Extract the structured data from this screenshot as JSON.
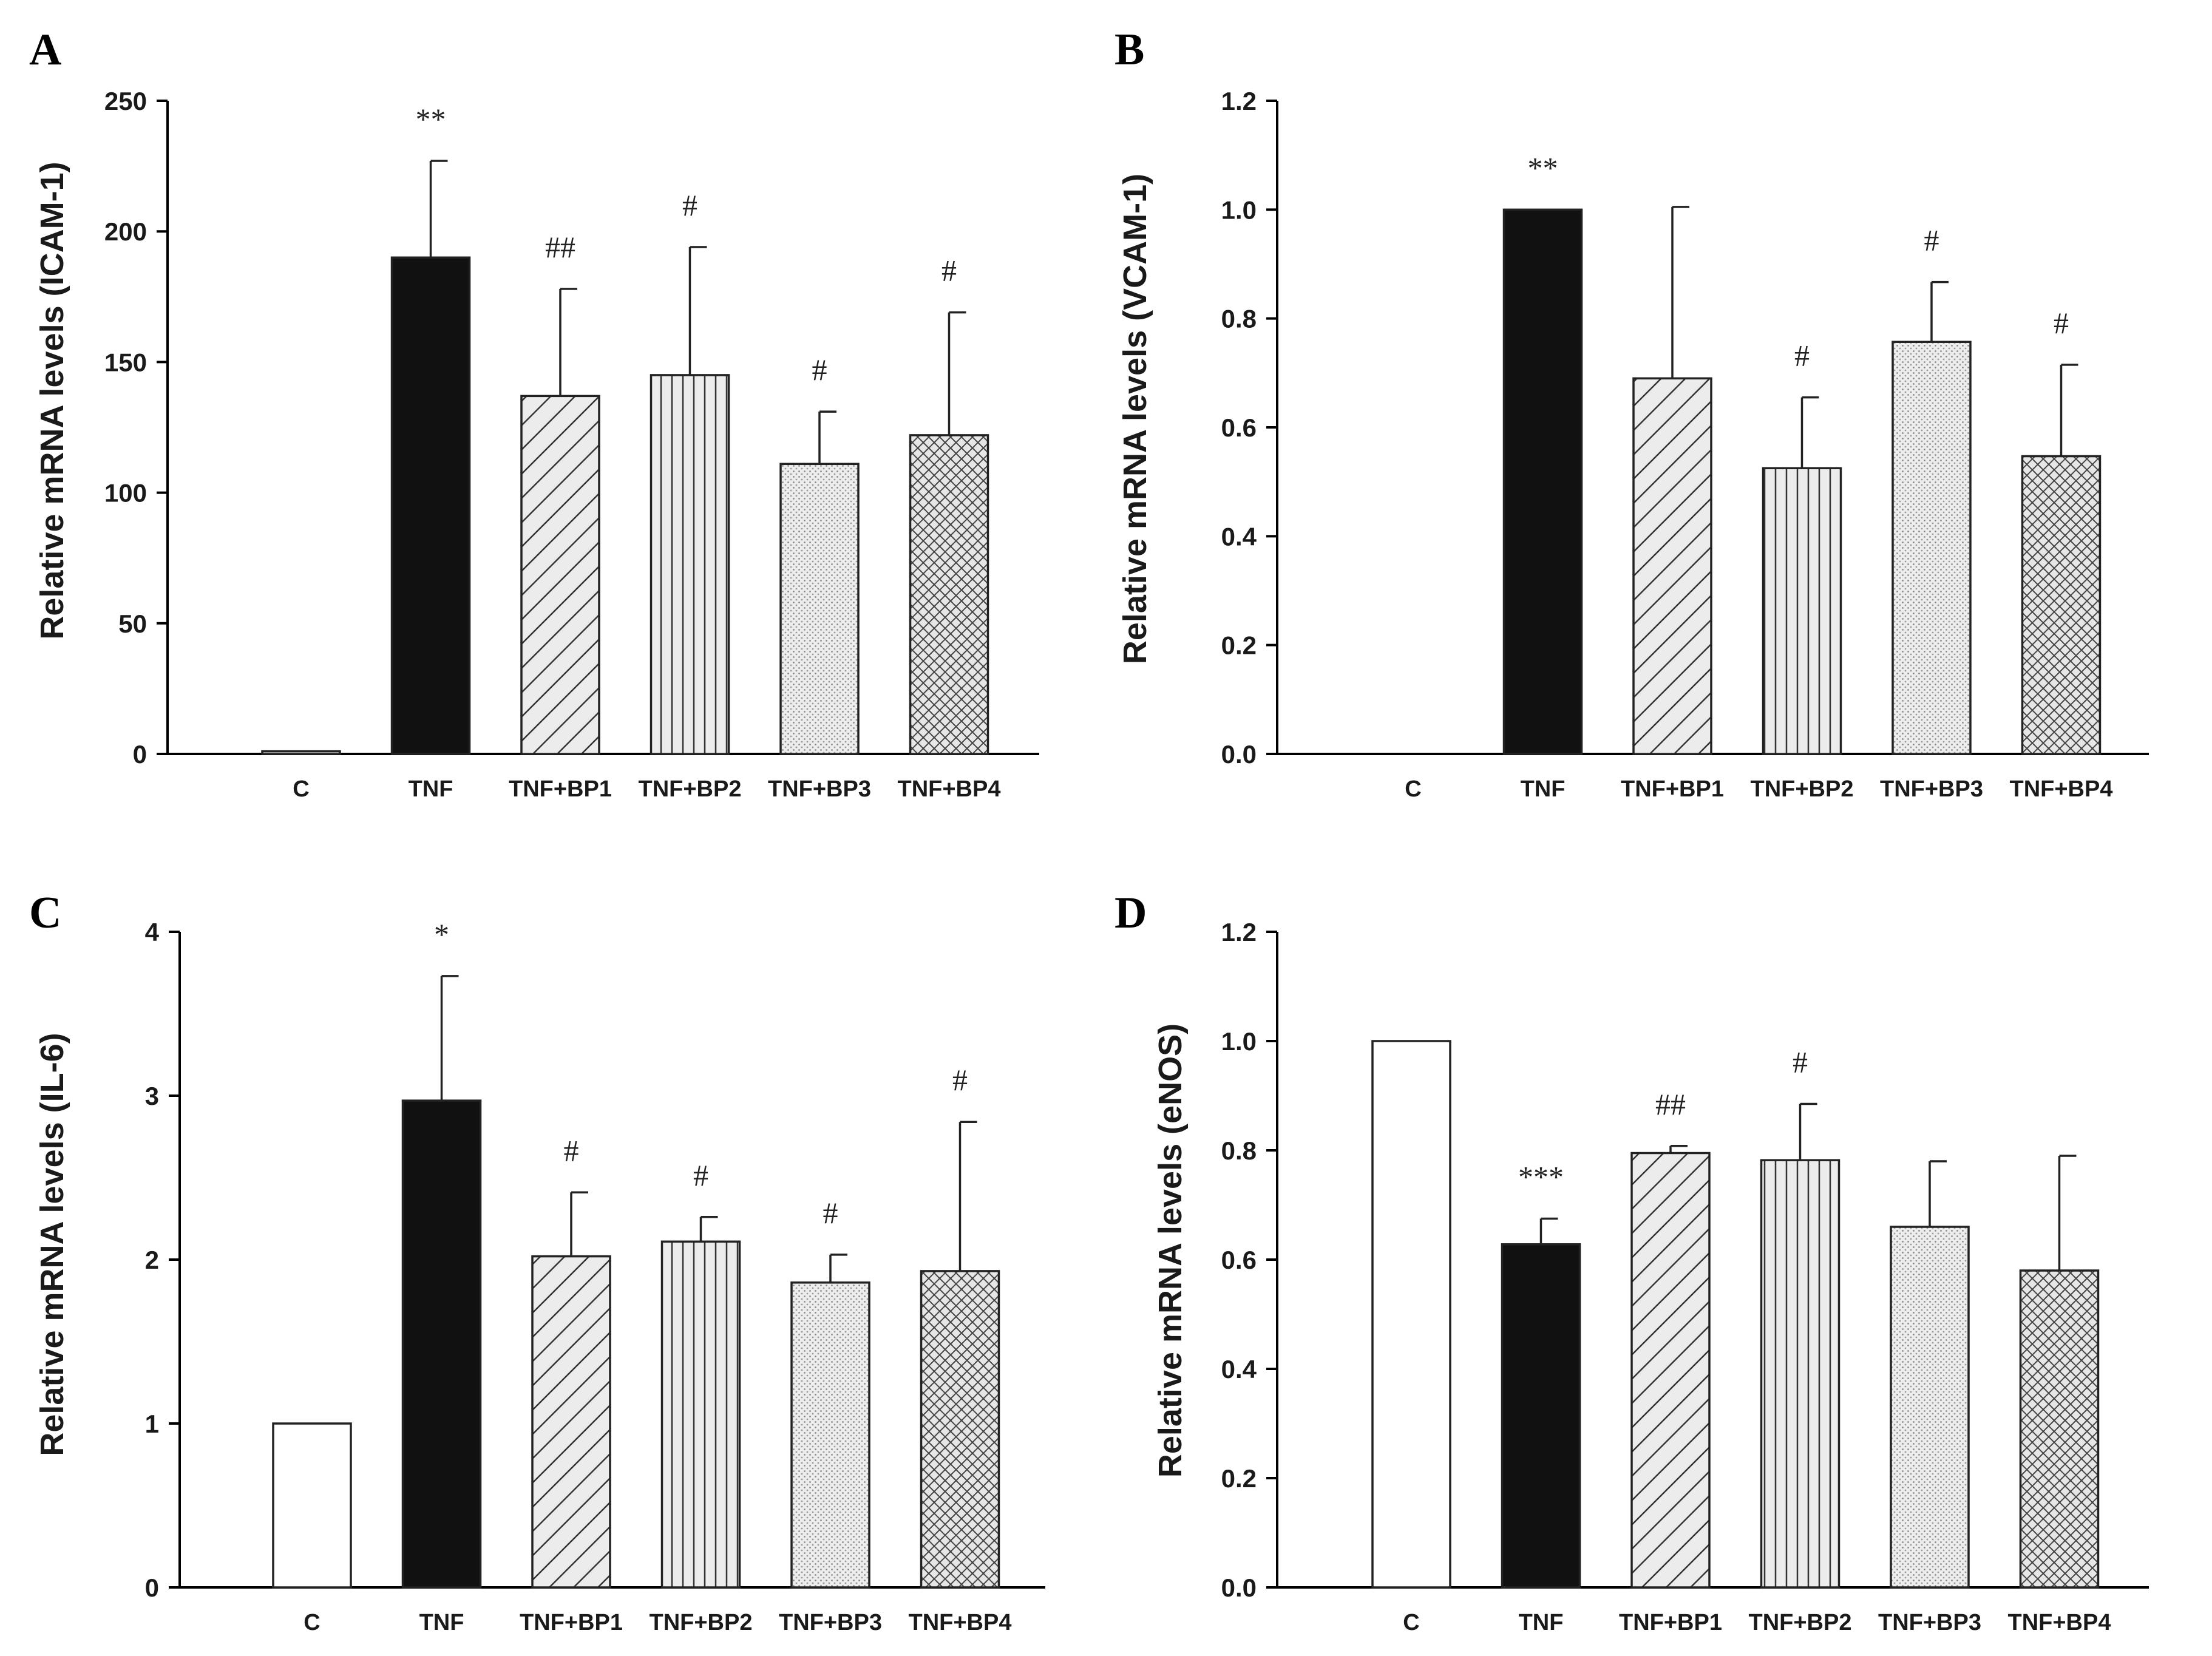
{
  "panels": [
    {
      "letter": "A",
      "chart_data": {
        "type": "bar",
        "categories": [
          "C",
          "TNF",
          "TNF+BP1",
          "TNF+BP2",
          "TNF+BP3",
          "TNF+BP4"
        ],
        "values": [
          1,
          190,
          137,
          145,
          111,
          122
        ],
        "errors": [
          0,
          37,
          41,
          49,
          20,
          47
        ],
        "significance": [
          "",
          "**",
          "##",
          "#",
          "#",
          "#"
        ],
        "ylabel": "Relative mRNA levels (ICAM-1)",
        "ylim": [
          0,
          250
        ],
        "yticks": [
          "0",
          "50",
          "100",
          "150",
          "200",
          "250"
        ],
        "patterns": [
          "white",
          "solid-black",
          "diagonal",
          "vertical",
          "dots",
          "crosshatch"
        ]
      }
    },
    {
      "letter": "B",
      "chart_data": {
        "type": "bar",
        "categories": [
          "C",
          "TNF",
          "TNF+BP1",
          "TNF+BP2",
          "TNF+BP3",
          "TNF+BP4"
        ],
        "values": [
          0,
          1.0,
          0.69,
          0.525,
          0.757,
          0.547
        ],
        "errors": [
          0,
          0,
          0.315,
          0.13,
          0.11,
          0.168
        ],
        "significance": [
          "",
          "**",
          "",
          "#",
          "#",
          "#"
        ],
        "ylabel": "Relative mRNA levels (VCAM-1)",
        "ylim": [
          0,
          1.2
        ],
        "yticks": [
          "0.0",
          "0.2",
          "0.4",
          "0.6",
          "0.8",
          "1.0",
          "1.2"
        ],
        "patterns": [
          "white",
          "solid-black",
          "diagonal",
          "vertical",
          "dots",
          "crosshatch"
        ]
      }
    },
    {
      "letter": "C",
      "chart_data": {
        "type": "bar",
        "categories": [
          "C",
          "TNF",
          "TNF+BP1",
          "TNF+BP2",
          "TNF+BP3",
          "TNF+BP4"
        ],
        "values": [
          1.0,
          2.97,
          2.02,
          2.11,
          1.86,
          1.93
        ],
        "errors": [
          0,
          0.76,
          0.39,
          0.15,
          0.17,
          0.91
        ],
        "significance": [
          "",
          "*",
          "#",
          "#",
          "#",
          "#"
        ],
        "ylabel": "Relative mRNA levels (IL-6)",
        "ylim": [
          0,
          4
        ],
        "yticks": [
          "0",
          "1",
          "2",
          "3",
          "4"
        ],
        "patterns": [
          "white",
          "solid-black",
          "diagonal",
          "vertical",
          "dots",
          "crosshatch"
        ]
      }
    },
    {
      "letter": "D",
      "chart_data": {
        "type": "bar",
        "categories": [
          "C",
          "TNF",
          "TNF+BP1",
          "TNF+BP2",
          "TNF+BP3",
          "TNF+BP4"
        ],
        "values": [
          1.0,
          0.628,
          0.795,
          0.782,
          0.66,
          0.58
        ],
        "errors": [
          0,
          0.047,
          0.013,
          0.103,
          0.12,
          0.21
        ],
        "significance": [
          "",
          "***",
          "##",
          "#",
          "",
          ""
        ],
        "ylabel": "Relative mRNA levels (eNOS)",
        "ylim": [
          0,
          1.2
        ],
        "yticks": [
          "0.0",
          "0.2",
          "0.4",
          "0.6",
          "0.8",
          "1.0",
          "1.2"
        ],
        "patterns": [
          "white",
          "solid-black",
          "diagonal",
          "vertical",
          "dots",
          "crosshatch"
        ]
      }
    }
  ]
}
